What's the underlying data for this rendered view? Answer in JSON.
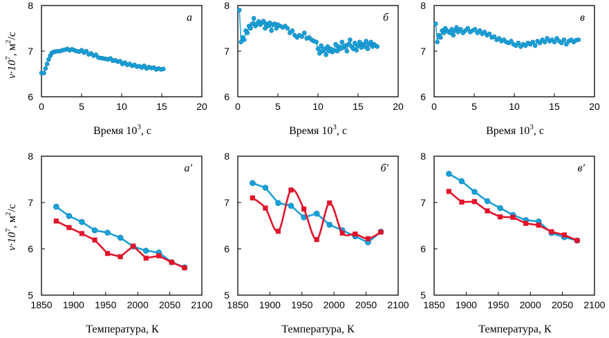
{
  "colors": {
    "blue": "#1aa0d8",
    "blue_stroke": "#0d7fb3",
    "red": "#e0142a"
  },
  "y_label_prefix": "v·10",
  "y_label_exp": "7",
  "y_label_unit": ", м",
  "y_label_unit_exp": "2",
  "y_label_tail": "/с",
  "time_label": "Время 10",
  "time_label_exp": "3",
  "time_label_tail": ", с",
  "temp_label": "Температура, К",
  "chart_data": [
    {
      "id": "a",
      "type": "scatter",
      "letter": "а",
      "xlim": [
        0,
        20
      ],
      "ylim": [
        6,
        8
      ],
      "xticks": [
        0,
        5,
        10,
        15,
        20
      ],
      "yticks": [
        6,
        7,
        8
      ],
      "series": [
        {
          "color": "blue",
          "marker": "circle",
          "x": [
            0,
            0.3,
            0.5,
            0.7,
            0.9,
            1.1,
            1.3,
            1.5,
            1.7,
            2,
            2.3,
            2.6,
            2.9,
            3.2,
            3.5,
            3.8,
            4.1,
            4.4,
            4.7,
            5,
            5.3,
            5.6,
            5.9,
            6.2,
            6.5,
            6.8,
            7.1,
            7.4,
            7.7,
            8,
            8.3,
            8.6,
            8.9,
            9.2,
            9.5,
            9.8,
            10.1,
            10.4,
            10.7,
            11,
            11.3,
            11.6,
            11.9,
            12.2,
            12.5,
            12.8,
            13.1,
            13.4,
            13.7,
            14,
            14.3,
            14.6,
            14.9,
            15.2
          ],
          "y": [
            6.52,
            6.52,
            6.62,
            6.72,
            6.82,
            6.9,
            6.96,
            6.98,
            6.99,
            7.0,
            7.0,
            7.02,
            7.03,
            7.05,
            7.02,
            7.04,
            7.02,
            7.0,
            6.99,
            7.02,
            6.97,
            7.0,
            6.93,
            6.95,
            6.9,
            6.92,
            6.86,
            6.85,
            6.84,
            6.83,
            6.82,
            6.84,
            6.79,
            6.8,
            6.77,
            6.78,
            6.72,
            6.75,
            6.7,
            6.72,
            6.68,
            6.7,
            6.66,
            6.67,
            6.64,
            6.68,
            6.62,
            6.65,
            6.63,
            6.64,
            6.6,
            6.62,
            6.6,
            6.61
          ]
        }
      ]
    },
    {
      "id": "b",
      "type": "scatter",
      "letter": "б",
      "xlim": [
        0,
        20
      ],
      "ylim": [
        6,
        8
      ],
      "xticks": [
        0,
        5,
        10,
        15,
        20
      ],
      "yticks": [
        6,
        7,
        8
      ],
      "series": [
        {
          "color": "blue",
          "marker": "circle",
          "x": [
            0.2,
            0.4,
            0.6,
            0.8,
            1,
            1.2,
            1.4,
            1.6,
            1.8,
            2,
            2.2,
            2.4,
            2.6,
            2.8,
            3,
            3.2,
            3.4,
            3.6,
            3.8,
            4,
            4.2,
            4.4,
            4.6,
            4.8,
            5,
            5.3,
            5.6,
            5.9,
            6.2,
            6.5,
            6.8,
            7.1,
            7.4,
            7.7,
            8,
            8.3,
            8.6,
            8.9,
            9.2,
            9.5,
            9.8,
            10,
            10.2,
            10.4,
            10.6,
            10.8,
            11,
            11.2,
            11.4,
            11.6,
            11.8,
            12,
            12.2,
            12.4,
            12.6,
            12.8,
            13,
            13.2,
            13.4,
            13.6,
            13.8,
            14,
            14.2,
            14.4,
            14.6,
            14.8,
            15,
            15.2,
            15.4,
            15.6,
            15.8,
            16,
            16.2,
            16.4,
            16.6,
            16.8,
            17,
            17.2,
            17.4
          ],
          "y": [
            7.9,
            7.2,
            7.3,
            7.25,
            7.45,
            7.4,
            7.55,
            7.5,
            7.6,
            7.72,
            7.55,
            7.6,
            7.65,
            7.58,
            7.62,
            7.66,
            7.5,
            7.6,
            7.55,
            7.62,
            7.45,
            7.58,
            7.6,
            7.5,
            7.58,
            7.55,
            7.52,
            7.55,
            7.5,
            7.4,
            7.45,
            7.35,
            7.3,
            7.35,
            7.32,
            7.4,
            7.28,
            7.3,
            7.25,
            7.22,
            7.2,
            7.05,
            6.95,
            7.12,
            7.0,
            7.05,
            6.92,
            7.1,
            7.0,
            7.05,
            6.98,
            7.02,
            7.15,
            7.0,
            7.1,
            7.05,
            7.2,
            7.08,
            7.12,
            7.0,
            7.15,
            7.25,
            7.1,
            7.05,
            7.18,
            7.02,
            7.12,
            7.2,
            7.08,
            7.15,
            7.1,
            7.22,
            7.05,
            7.15,
            7.2,
            7.1,
            7.15,
            7.12,
            7.1
          ]
        }
      ]
    },
    {
      "id": "c",
      "type": "scatter",
      "letter": "в",
      "xlim": [
        0,
        20
      ],
      "ylim": [
        6,
        8
      ],
      "xticks": [
        0,
        5,
        10,
        15,
        20
      ],
      "yticks": [
        6,
        7,
        8
      ],
      "series": [
        {
          "color": "blue",
          "marker": "circle",
          "x": [
            0.2,
            0.4,
            0.6,
            0.8,
            1,
            1.2,
            1.4,
            1.6,
            1.8,
            2,
            2.2,
            2.4,
            2.6,
            2.8,
            3,
            3.3,
            3.6,
            3.9,
            4.2,
            4.5,
            4.8,
            5.1,
            5.4,
            5.7,
            6,
            6.3,
            6.6,
            6.9,
            7.2,
            7.5,
            7.8,
            8.1,
            8.4,
            8.7,
            9,
            9.3,
            9.6,
            9.9,
            10.2,
            10.5,
            10.8,
            11.1,
            11.4,
            11.7,
            12,
            12.3,
            12.6,
            12.9,
            13.2,
            13.5,
            13.8,
            14.1,
            14.4,
            14.7,
            15,
            15.3,
            15.6,
            15.9,
            16.2,
            16.5,
            16.8,
            17.1,
            17.4,
            17.7,
            18
          ],
          "y": [
            7.6,
            7.2,
            7.35,
            7.3,
            7.45,
            7.4,
            7.5,
            7.45,
            7.42,
            7.4,
            7.48,
            7.35,
            7.45,
            7.52,
            7.42,
            7.48,
            7.4,
            7.45,
            7.5,
            7.42,
            7.45,
            7.48,
            7.4,
            7.45,
            7.38,
            7.42,
            7.35,
            7.38,
            7.3,
            7.32,
            7.25,
            7.28,
            7.22,
            7.25,
            7.2,
            7.18,
            7.22,
            7.15,
            7.12,
            7.18,
            7.1,
            7.15,
            7.12,
            7.18,
            7.15,
            7.2,
            7.12,
            7.22,
            7.18,
            7.25,
            7.2,
            7.28,
            7.22,
            7.25,
            7.2,
            7.28,
            7.22,
            7.18,
            7.25,
            7.15,
            7.22,
            7.25,
            7.2,
            7.24,
            7.25
          ]
        }
      ]
    },
    {
      "id": "a2",
      "type": "line",
      "letter": "а′",
      "xlim": [
        1850,
        2100
      ],
      "ylim": [
        5,
        8
      ],
      "xticks": [
        1850,
        1900,
        1950,
        2000,
        2050,
        2100
      ],
      "yticks": [
        5,
        6,
        7,
        8
      ],
      "smooth": false,
      "series": [
        {
          "color": "blue",
          "marker": "circle",
          "x": [
            1873,
            1893,
            1913,
            1933,
            1953,
            1973,
            1993,
            2013,
            2033,
            2053,
            2073
          ],
          "y": [
            6.91,
            6.71,
            6.58,
            6.4,
            6.35,
            6.24,
            6.05,
            5.96,
            5.92,
            5.71,
            5.6
          ]
        },
        {
          "color": "red",
          "marker": "square",
          "x": [
            1873,
            1893,
            1913,
            1933,
            1953,
            1973,
            1993,
            2013,
            2033,
            2053,
            2073
          ],
          "y": [
            6.6,
            6.46,
            6.33,
            6.19,
            5.9,
            5.83,
            6.06,
            5.8,
            5.85,
            5.71,
            5.59
          ]
        }
      ]
    },
    {
      "id": "b2",
      "type": "line",
      "letter": "б′",
      "xlim": [
        1850,
        2100
      ],
      "ylim": [
        5,
        8
      ],
      "xticks": [
        1850,
        1900,
        1950,
        2000,
        2050,
        2100
      ],
      "yticks": [
        5,
        6,
        7,
        8
      ],
      "smooth": true,
      "series": [
        {
          "color": "blue",
          "marker": "circle",
          "x": [
            1873,
            1893,
            1913,
            1933,
            1953,
            1973,
            1993,
            2013,
            2033,
            2053,
            2073
          ],
          "y": [
            7.42,
            7.32,
            6.99,
            6.93,
            6.68,
            6.76,
            6.52,
            6.4,
            6.27,
            6.14,
            6.37
          ]
        },
        {
          "color": "red",
          "marker": "square",
          "x": [
            1873,
            1893,
            1913,
            1933,
            1953,
            1973,
            1993,
            2013,
            2033,
            2053,
            2073
          ],
          "y": [
            7.1,
            6.88,
            6.38,
            7.27,
            6.86,
            6.2,
            6.99,
            6.34,
            6.32,
            6.22,
            6.36
          ]
        }
      ]
    },
    {
      "id": "c2",
      "type": "line",
      "letter": "в′",
      "xlim": [
        1850,
        2100
      ],
      "ylim": [
        5,
        8
      ],
      "xticks": [
        1850,
        1900,
        1950,
        2000,
        2050,
        2100
      ],
      "yticks": [
        5,
        6,
        7,
        8
      ],
      "smooth": false,
      "series": [
        {
          "color": "blue",
          "marker": "circle",
          "x": [
            1873,
            1893,
            1913,
            1933,
            1953,
            1973,
            1993,
            2013,
            2033,
            2053,
            2073
          ],
          "y": [
            7.62,
            7.46,
            7.23,
            7.03,
            6.88,
            6.73,
            6.62,
            6.59,
            6.34,
            6.25,
            6.18
          ]
        },
        {
          "color": "red",
          "marker": "square",
          "x": [
            1873,
            1893,
            1913,
            1933,
            1953,
            1973,
            1993,
            2013,
            2033,
            2053,
            2073
          ],
          "y": [
            7.24,
            7.01,
            7.02,
            6.82,
            6.69,
            6.68,
            6.55,
            6.51,
            6.37,
            6.3,
            6.18
          ]
        }
      ]
    }
  ]
}
